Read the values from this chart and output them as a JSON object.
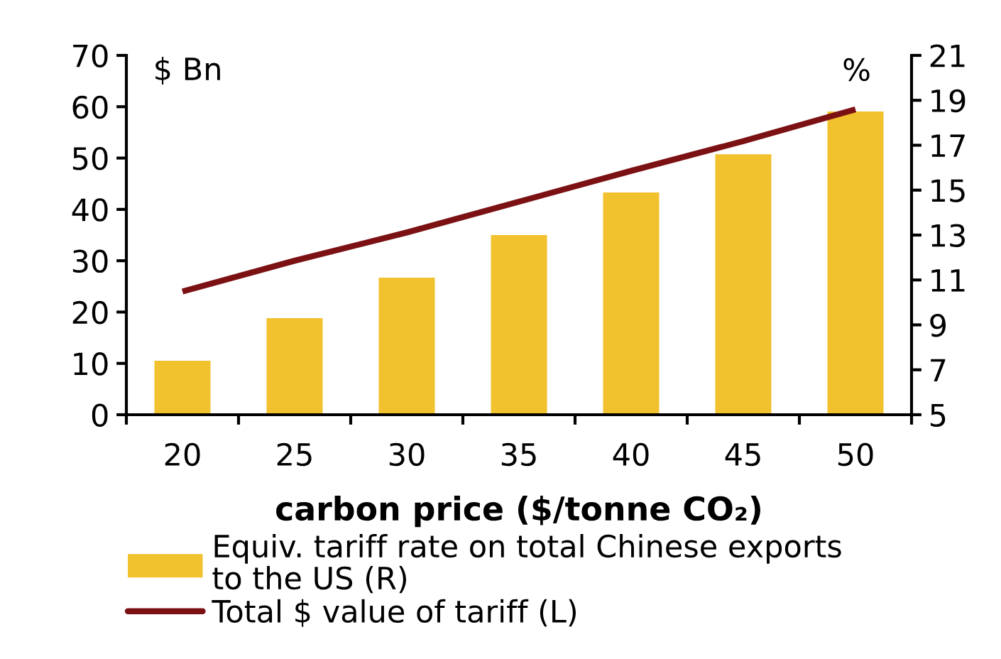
{
  "chart_data": {
    "type": "bar",
    "categories": [
      "20",
      "25",
      "30",
      "35",
      "40",
      "45",
      "50"
    ],
    "xlabel": "carbon price ($/tonne CO₂)",
    "ylabel": "$ Bn",
    "y2label": "%",
    "series": [
      {
        "name": "Equiv. tariff rate on total Chinese exports\nto the US (R)",
        "axis": "y2",
        "color": "#f2c12e",
        "values": [
          7.4,
          9.3,
          11.1,
          13.0,
          14.9,
          16.6,
          18.5
        ]
      },
      {
        "name": "Total $ value of tariff (L)",
        "type": "line",
        "axis": "y",
        "color": "#7b1113",
        "values": [
          24,
          30,
          35.5,
          41.5,
          47.5,
          53.3,
          59.5
        ]
      }
    ],
    "ylim": [
      0,
      70
    ],
    "yticks": [
      0,
      10,
      20,
      30,
      40,
      50,
      60,
      70
    ],
    "y2lim": [
      5,
      21
    ],
    "y2ticks": [
      5,
      7,
      9,
      11,
      13,
      15,
      17,
      19,
      21
    ],
    "grid": false,
    "legend": "bottom"
  }
}
